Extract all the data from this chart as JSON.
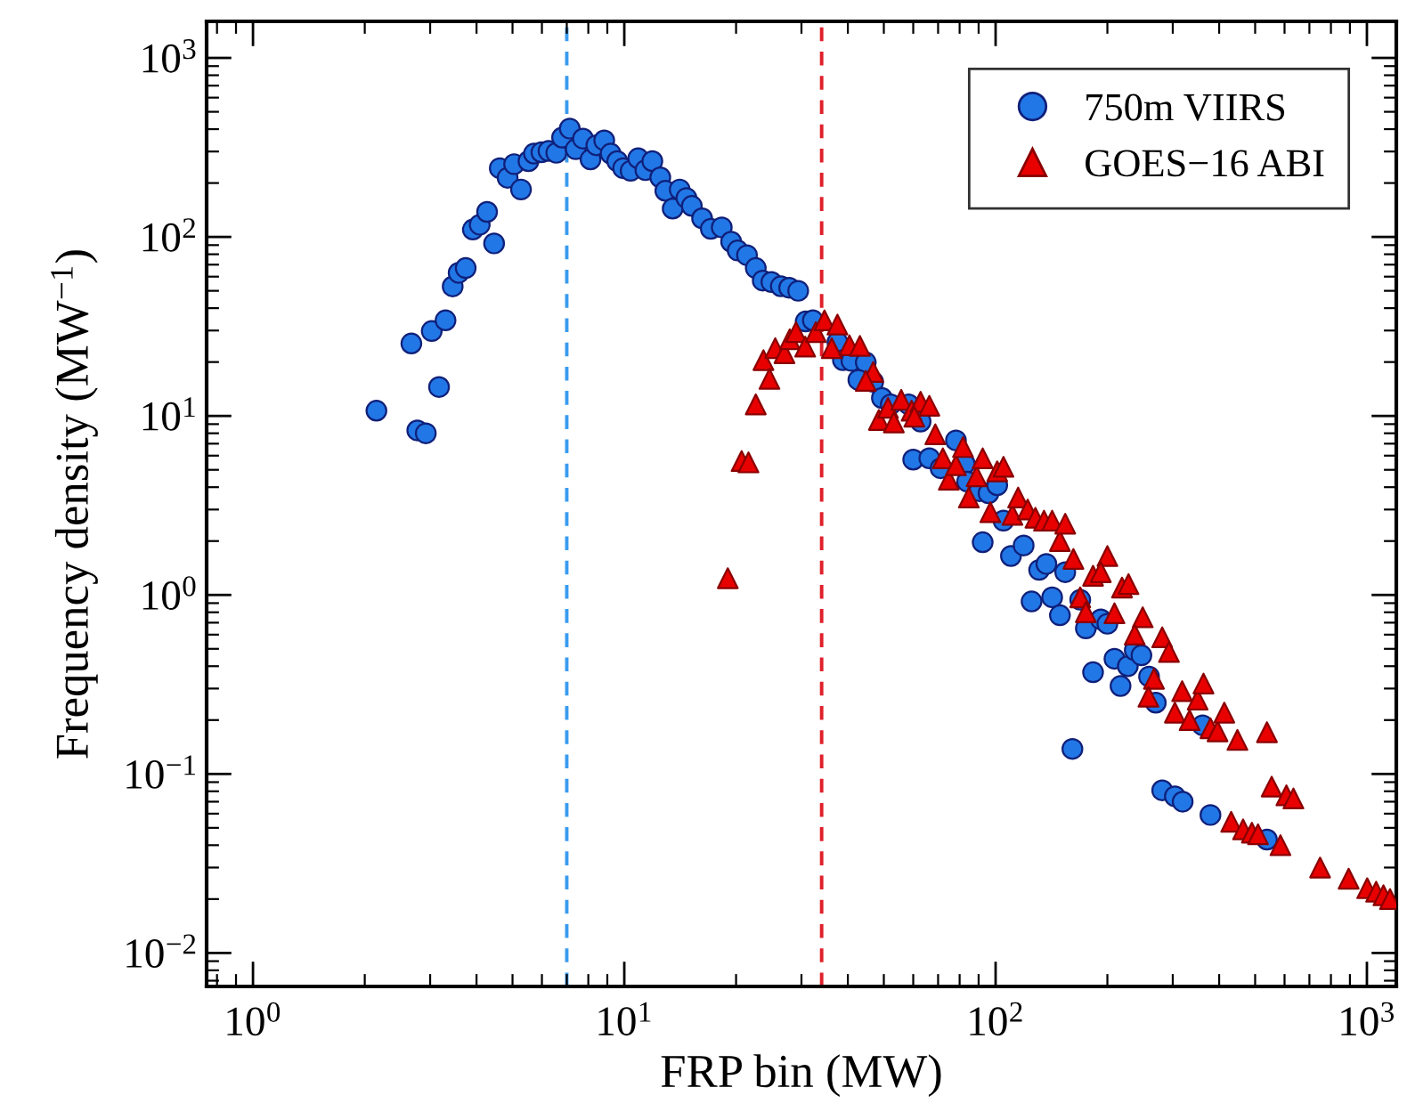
{
  "chart_data": {
    "type": "scatter",
    "xlabel": "FRP bin (MW)",
    "ylabel": "Frequency density (MW$^{−1}$)",
    "log": "xy",
    "grid": false,
    "legend": "top right",
    "xlim": [
      0.75,
      1200
    ],
    "ylim": [
      0.0065,
      1600
    ],
    "xticks": [
      {
        "value": 1,
        "label": "10$^{0}$"
      },
      {
        "value": 10,
        "label": "10$^{1}$"
      },
      {
        "value": 100,
        "label": "10$^{2}$"
      },
      {
        "value": 1000,
        "label": "10$^{3}$"
      }
    ],
    "yticks": [
      {
        "value": 0.01,
        "label": "10$^{−2}$"
      },
      {
        "value": 0.1,
        "label": "10$^{−1}$"
      },
      {
        "value": 1,
        "label": "10$^{0}$"
      },
      {
        "value": 10,
        "label": "10$^{1}$"
      },
      {
        "value": 100,
        "label": "10$^{2}$"
      },
      {
        "value": 1000,
        "label": "10$^{3}$"
      }
    ],
    "ref_lines": [
      {
        "axis": "x",
        "value": 7.0,
        "color": "#3a9bf0",
        "line_style": "dashed"
      },
      {
        "axis": "x",
        "value": 34,
        "color": "#e0202a",
        "line_style": "dashed"
      }
    ],
    "series": [
      {
        "name": "750m VIIRS",
        "color": "#2277e6",
        "marker": "circle",
        "x": [
          2.15,
          2.67,
          2.77,
          2.92,
          3.03,
          3.17,
          3.3,
          3.45,
          3.58,
          3.74,
          3.91,
          4.08,
          4.27,
          4.46,
          4.62,
          4.85,
          5.05,
          5.27,
          5.52,
          5.71,
          5.98,
          6.25,
          6.56,
          6.8,
          7.13,
          7.4,
          7.74,
          8.11,
          8.41,
          8.83,
          9.19,
          9.57,
          9.93,
          10.4,
          10.9,
          11.4,
          11.9,
          12.5,
          12.9,
          13.5,
          14.1,
          14.7,
          15.2,
          16.2,
          17.1,
          18.3,
          19.4,
          20.2,
          21.4,
          22.6,
          23.6,
          24.9,
          26.4,
          27.8,
          29.4,
          30.8,
          32.2,
          37.5,
          38.8,
          40.9,
          44.7,
          42.7,
          46.8,
          49.4,
          52.2,
          58.3,
          62.8,
          60.0,
          66.3,
          71.1,
          78.2,
          82.6,
          83.8,
          90.5,
          95.7,
          101,
          105,
          92.3,
          110,
          119,
          131,
          137,
          154,
          125,
          142,
          149,
          169,
          175,
          192,
          200,
          209,
          227,
          237,
          247,
          183,
          217,
          259,
          270,
          361,
          161,
          281,
          304,
          319,
          379,
          538
        ],
        "values": [
          10.7,
          25.4,
          8.3,
          8.0,
          29.8,
          14.5,
          34.2,
          52.9,
          63,
          67,
          110,
          117,
          138,
          92,
          242,
          214,
          255,
          184,
          265,
          292,
          297,
          302,
          295,
          359,
          403,
          309,
          354,
          271,
          325,
          346,
          292,
          265,
          242,
          234,
          275,
          236,
          265,
          215,
          181,
          144,
          184,
          165,
          149,
          127,
          111,
          113,
          94,
          84,
          79,
          67,
          57,
          56,
          53,
          52,
          50,
          33.7,
          34.2,
          25.8,
          20.5,
          20.3,
          19.9,
          15.9,
          15.5,
          12.6,
          11.6,
          11.6,
          9.3,
          5.7,
          5.8,
          5.1,
          7.3,
          5.4,
          4.3,
          3.8,
          3.7,
          4.1,
          2.6,
          1.97,
          1.65,
          1.89,
          1.38,
          1.49,
          1.34,
          0.92,
          0.97,
          0.77,
          0.94,
          0.65,
          0.73,
          0.69,
          0.44,
          0.4,
          0.49,
          0.46,
          0.37,
          0.31,
          0.35,
          0.25,
          0.187,
          0.138,
          0.081,
          0.075,
          0.07,
          0.059,
          0.043
        ]
      },
      {
        "name": "GOES−16 ABI",
        "color": "#e80000",
        "marker": "triangle",
        "x": [
          19.0,
          20.7,
          21.6,
          22.6,
          23.7,
          24.6,
          25.5,
          27.0,
          27.9,
          29.0,
          30.7,
          32.8,
          34.6,
          37.5,
          36.2,
          40.4,
          43.1,
          46.8,
          44.7,
          48.5,
          51.3,
          53.2,
          55.7,
          59.4,
          62.8,
          66.3,
          60.4,
          68.8,
          72.1,
          74.8,
          78.2,
          81.7,
          84.7,
          88.9,
          92.3,
          96.8,
          101,
          105,
          111,
          115,
          122,
          128,
          135,
          142,
          149,
          154,
          162,
          200,
          183,
          192,
          219,
          228,
          169,
          175,
          209,
          249,
          237,
          281,
          293,
          267,
          258,
          318,
          350,
          363,
          304,
          333,
          379,
          396,
          413,
          448,
          538,
          554,
          607,
          634,
          431,
          464,
          490,
          509,
          585,
          748,
          893,
          1002,
          1059,
          1108,
          1154
        ],
        "values": [
          1.24,
          5.6,
          5.5,
          11.6,
          20.5,
          16.1,
          23.9,
          22.4,
          26.8,
          29.4,
          24.4,
          29.4,
          34.2,
          32.4,
          23.9,
          24.8,
          24.6,
          17.6,
          15.7,
          9.5,
          11.1,
          9.2,
          12.3,
          10.7,
          12.0,
          11.4,
          9.9,
          7.9,
          5.8,
          4.4,
          5.3,
          6.7,
          3.5,
          4.6,
          5.8,
          2.9,
          4.9,
          5.2,
          2.8,
          3.5,
          3.0,
          2.7,
          2.6,
          2.6,
          2.0,
          2.5,
          1.59,
          1.65,
          1.28,
          1.34,
          1.1,
          1.15,
          0.97,
          0.8,
          0.79,
          0.75,
          0.6,
          0.58,
          0.48,
          0.34,
          0.27,
          0.29,
          0.26,
          0.32,
          0.22,
          0.2,
          0.18,
          0.173,
          0.22,
          0.155,
          0.171,
          0.085,
          0.076,
          0.073,
          0.054,
          0.049,
          0.047,
          0.046,
          0.04,
          0.03,
          0.026,
          0.023,
          0.022,
          0.021,
          0.02
        ]
      }
    ]
  }
}
